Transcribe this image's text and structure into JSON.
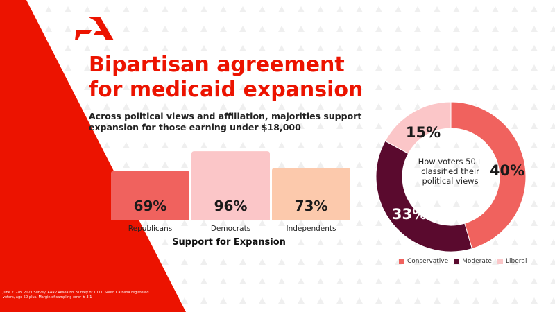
{
  "title": "Bipartisan agreement for medicaid expansion",
  "subtitle": "Across political views and affiliation, majorities support expansion for those earning under $18,000",
  "colors": {
    "brand_red": "#ec1300",
    "conservative": "#f0625e",
    "moderate": "#5a0a2e",
    "liberal": "#fbc6c8",
    "republicans": "#f0625e",
    "democrats": "#fbc6c8",
    "independents": "#fcc9ac"
  },
  "logo_icon": "aarp-a-logo-icon",
  "footnote": "June 21-28, 2021 Survey. AARP Research. Survey of 1,000 South Carolina registered voters, age 50-plus. Margin of sampling error ± 3.1",
  "chart_data": [
    {
      "type": "bar",
      "categories": [
        "Republicans",
        "Democrats",
        "Independents"
      ],
      "values": [
        69,
        96,
        73
      ],
      "value_labels": [
        "69%",
        "96%",
        "73%"
      ],
      "xlabel": "Support for Expansion",
      "ylabel": "",
      "ylim": [
        0,
        100
      ],
      "grid": false
    },
    {
      "type": "pie",
      "style": "donut",
      "center_label": "How voters 50+ classified their political views",
      "labels": [
        "Conservative",
        "Moderate",
        "Liberal"
      ],
      "values": [
        40,
        33,
        15
      ],
      "value_labels": [
        "40%",
        "33%",
        "15%"
      ],
      "legend": "bottom"
    }
  ]
}
